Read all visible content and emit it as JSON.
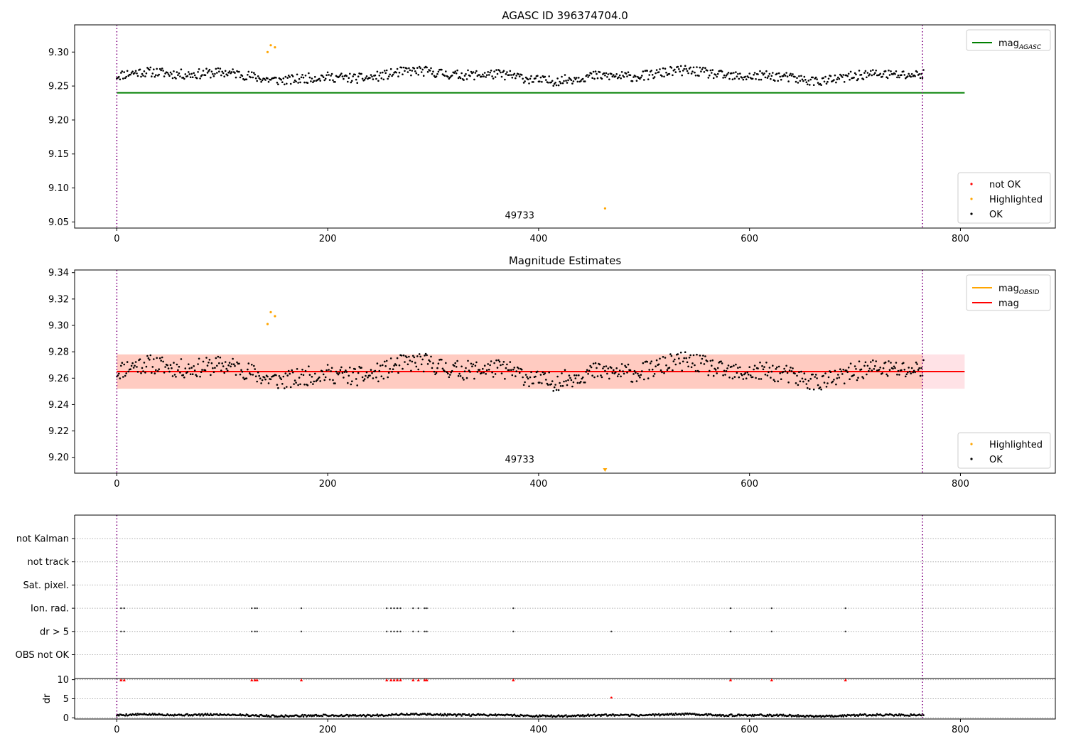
{
  "chart_data": [
    {
      "type": "scatter",
      "title": "AGASC ID 396374704.0",
      "xlabel": "",
      "ylabel": "",
      "xlim": [
        -40,
        890
      ],
      "ylim": [
        9.041,
        9.34
      ],
      "xticks": [
        0,
        200,
        400,
        600,
        800
      ],
      "yticks": [
        9.05,
        9.1,
        9.15,
        9.2,
        9.25,
        9.3
      ],
      "ytick_decimals": 2,
      "obs_bounds": [
        0,
        764
      ],
      "obs_label": {
        "text": "49733",
        "x": 382,
        "y": 9.055
      },
      "hlines": [
        {
          "name": "mag_AGASC",
          "y": 9.24,
          "x": [
            0,
            804
          ],
          "color": "#008000"
        }
      ],
      "legend_lines": [
        {
          "label": "mag",
          "sub": "AGASC",
          "color": "#008000"
        }
      ],
      "legend_points": [
        {
          "label": "not OK",
          "color": "#ff0000"
        },
        {
          "label": "Highlighted",
          "color": "#ffa500"
        },
        {
          "label": "OK",
          "color": "#000000"
        }
      ],
      "highlighted_points": [
        [
          143,
          9.3
        ],
        [
          146,
          9.31
        ],
        [
          150,
          9.307
        ],
        [
          463,
          9.07
        ]
      ],
      "ok_series": {
        "seed": 11,
        "n": 766,
        "x_range": [
          0,
          765
        ],
        "base": 9.265,
        "offset": 0,
        "noise": 0.009
      }
    },
    {
      "type": "scatter",
      "title": "Magnitude Estimates",
      "xlabel": "",
      "ylabel": "",
      "xlim": [
        -40,
        890
      ],
      "ylim": [
        9.188,
        9.342
      ],
      "xticks": [
        0,
        200,
        400,
        600,
        800
      ],
      "yticks": [
        9.2,
        9.22,
        9.24,
        9.26,
        9.28,
        9.3,
        9.32,
        9.34
      ],
      "ytick_decimals": 2,
      "obs_bounds": [
        0,
        764
      ],
      "obs_label": {
        "text": "49733",
        "x": 382,
        "y": 9.196
      },
      "bands": [
        {
          "y": [
            9.252,
            9.278
          ],
          "x": [
            0,
            804
          ],
          "color": "#ffb6c1",
          "opacity": 0.4
        },
        {
          "y": [
            9.252,
            9.278
          ],
          "x": [
            0,
            764
          ],
          "color": "#ffa07a",
          "opacity": 0.35
        }
      ],
      "hlines": [
        {
          "name": "mag_OBSID",
          "y": 9.265,
          "x": [
            0,
            764
          ],
          "color": "#ffa500"
        },
        {
          "name": "mag",
          "y": 9.265,
          "x": [
            0,
            804
          ],
          "color": "#ff0000"
        }
      ],
      "legend_lines": [
        {
          "label": "mag",
          "sub": "OBSID",
          "color": "#ffa500"
        },
        {
          "label": "mag",
          "sub": "",
          "color": "#ff0000"
        }
      ],
      "legend_points": [
        {
          "label": "Highlighted",
          "color": "#ffa500"
        },
        {
          "label": "OK",
          "color": "#000000"
        }
      ],
      "highlighted_points": [
        [
          143,
          9.301
        ],
        [
          146,
          9.31
        ],
        [
          150,
          9.307
        ]
      ],
      "offscale_marker": {
        "x": 463,
        "color": "#ffa500"
      },
      "ok_series": {
        "seed": 11,
        "n": 766,
        "x_range": [
          0,
          765
        ],
        "base": 9.265,
        "offset": 0,
        "noise": 0.009
      }
    },
    {
      "type": "scatter",
      "title": "",
      "xlabel": "",
      "ylabel": "",
      "xlim": [
        -40,
        890
      ],
      "obs_bounds": [
        0,
        764
      ],
      "flag_rows": [
        "not Kalman",
        "not track",
        "Sat. pixel.",
        "Ion. rad.",
        "dr > 5",
        "OBS not OK"
      ],
      "flag_points": {
        "Ion. rad.": [
          4,
          7,
          128,
          131,
          133,
          175,
          256,
          260,
          263,
          266,
          269,
          281,
          286,
          292,
          294,
          376,
          582,
          621,
          691
        ],
        "dr > 5": [
          4,
          7,
          128,
          131,
          133,
          175,
          256,
          260,
          263,
          266,
          269,
          281,
          286,
          292,
          294,
          376,
          469,
          582,
          621,
          691
        ]
      }
    },
    {
      "type": "scatter",
      "title": "",
      "xlabel": "",
      "ylabel": "dr",
      "xlim": [
        -40,
        890
      ],
      "ylim": [
        -0.3,
        10.3
      ],
      "xticks": [
        0,
        200,
        400,
        600,
        800
      ],
      "yticks": [
        0,
        5,
        10
      ],
      "ytick_decimals": 0,
      "obs_bounds": [
        0,
        764
      ],
      "capped_points": [
        4,
        7,
        128,
        131,
        133,
        175,
        256,
        260,
        263,
        266,
        269,
        281,
        286,
        292,
        294,
        376,
        582,
        621,
        691
      ],
      "red_points": [
        [
          469,
          5.3
        ]
      ],
      "ok_series": {
        "seed": 5,
        "n": 766,
        "x_range": [
          0,
          765
        ],
        "base": 0.7,
        "offset": 0,
        "noise": 0.3
      }
    }
  ]
}
